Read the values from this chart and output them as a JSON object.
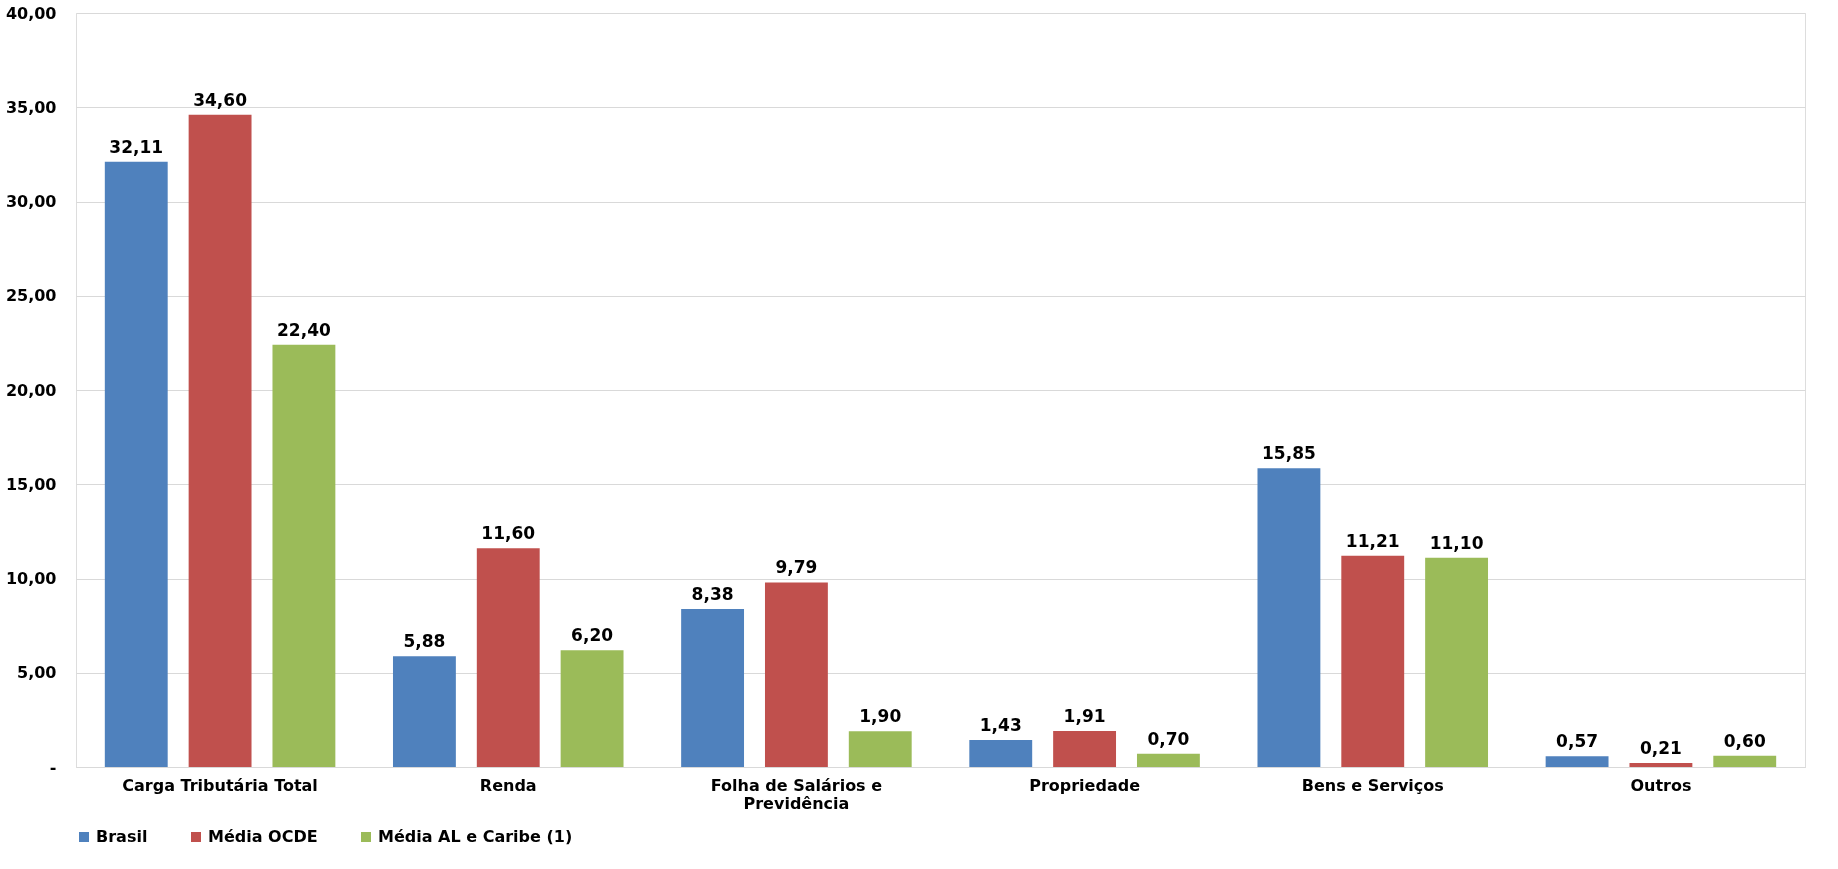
{
  "chart_data": {
    "type": "bar",
    "categories": [
      "Carga Tributária Total",
      "Renda",
      "Folha de Salários e Previdência",
      "Propriedade",
      "Bens e Serviços",
      "Outros"
    ],
    "series": [
      {
        "name": "Brasil",
        "color": "#4f81bd",
        "values": [
          32.11,
          5.88,
          8.38,
          1.43,
          15.85,
          0.57
        ],
        "value_labels": [
          "32,11",
          "5,88",
          "8,38",
          "1,43",
          "15,85",
          "0,57"
        ]
      },
      {
        "name": "Média OCDE",
        "color": "#c0504d",
        "values": [
          34.6,
          11.6,
          9.79,
          1.91,
          11.21,
          0.21
        ],
        "value_labels": [
          "34,60",
          "11,60",
          "9,79",
          "1,91",
          "11,21",
          "0,21"
        ]
      },
      {
        "name": "Média AL e Caribe (1)",
        "color": "#9bbb59",
        "values": [
          22.4,
          6.2,
          1.9,
          0.7,
          11.1,
          0.6
        ],
        "value_labels": [
          "22,40",
          "6,20",
          "1,90",
          "0,70",
          "11,10",
          "0,60"
        ]
      }
    ],
    "ylim": [
      0,
      40
    ],
    "yticks": [
      {
        "value": 0,
        "label": "-"
      },
      {
        "value": 5,
        "label": "5,00"
      },
      {
        "value": 10,
        "label": "10,00"
      },
      {
        "value": 15,
        "label": "15,00"
      },
      {
        "value": 20,
        "label": "20,00"
      },
      {
        "value": 25,
        "label": "25,00"
      },
      {
        "value": 30,
        "label": "30,00"
      },
      {
        "value": 35,
        "label": "35,00"
      },
      {
        "value": 40,
        "label": "40,00"
      }
    ],
    "grid": "y",
    "legend": "bottom"
  }
}
